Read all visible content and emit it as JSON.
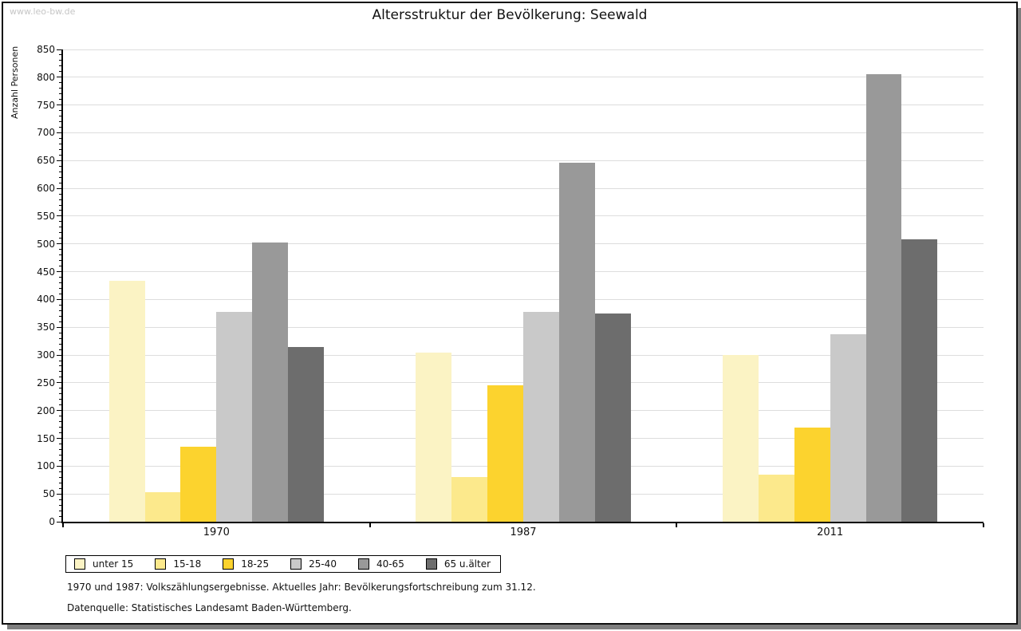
{
  "watermark": "www.leo-bw.de",
  "title": "Altersstruktur der Bevölkerung: Seewald",
  "ylabel": "Anzahl Personen",
  "footnotes": [
    "1970 und 1987: Volkszählungsergebnisse. Aktuelles Jahr: Bevölkerungsfortschreibung zum 31.12.",
    "Datenquelle: Statistisches Landesamt Baden-Württemberg."
  ],
  "colors": {
    "frame_border": "#101010",
    "frame_shadow": "#7f7f7f",
    "gridline": "#dddddd",
    "axis": "#000000",
    "watermark": "#c6c6c6",
    "text": "#111111"
  },
  "chart_data": {
    "type": "bar",
    "categories": [
      "1970",
      "1987",
      "2011"
    ],
    "series": [
      {
        "name": "unter 15",
        "color": "#fbf3c4",
        "values": [
          433,
          305,
          300
        ]
      },
      {
        "name": "15-18",
        "color": "#fce98c",
        "values": [
          53,
          80,
          85
        ]
      },
      {
        "name": "18-25",
        "color": "#fcd32e",
        "values": [
          135,
          246,
          169
        ]
      },
      {
        "name": "25-40",
        "color": "#c9c9c9",
        "values": [
          378,
          377,
          338
        ]
      },
      {
        "name": "40-65",
        "color": "#999999",
        "values": [
          502,
          646,
          806
        ]
      },
      {
        "name": "65 u.älter",
        "color": "#6d6d6d",
        "values": [
          315,
          375,
          508
        ]
      }
    ],
    "title": "Altersstruktur der Bevölkerung: Seewald",
    "xlabel": "",
    "ylabel": "Anzahl Personen",
    "ylim": [
      0,
      850
    ],
    "ytick_step": 50,
    "minor_tick_step": 10,
    "grid": true,
    "legend_position": "bottom-left"
  }
}
